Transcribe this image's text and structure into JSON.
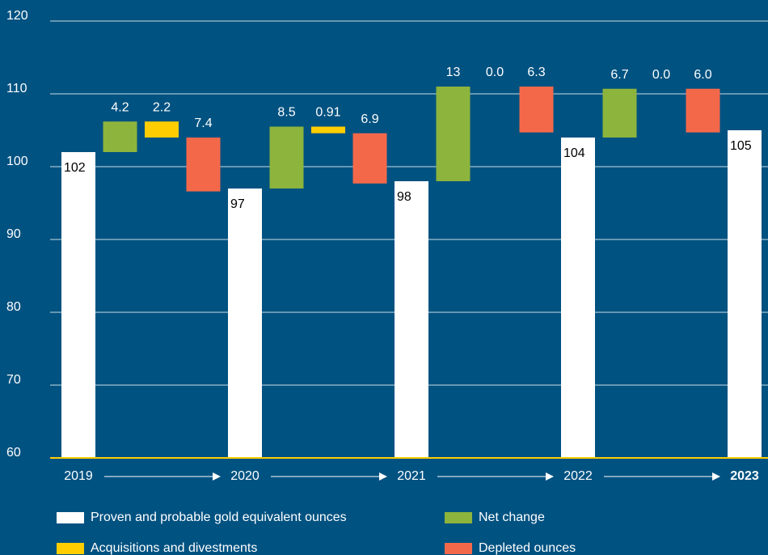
{
  "chart_data": {
    "type": "waterfall",
    "categories": [
      "2019",
      null,
      null,
      null,
      "2020",
      null,
      null,
      null,
      "2021",
      null,
      null,
      null,
      "2022",
      null,
      null,
      null,
      "2023"
    ],
    "series": [
      {
        "name": "Proven and probable gold equivalent ounces",
        "color": "#ffffff",
        "values": [
          102,
          null,
          null,
          null,
          97,
          null,
          null,
          null,
          98,
          null,
          null,
          null,
          104,
          null,
          null,
          null,
          105
        ]
      },
      {
        "name": "Net change",
        "color": "#8db43c",
        "values": [
          null,
          4.2,
          null,
          null,
          null,
          8.5,
          null,
          null,
          null,
          13,
          null,
          null,
          null,
          6.7,
          null,
          null,
          null
        ]
      },
      {
        "name": "Acquisitions and divestments",
        "color": "#ffcd00",
        "values": [
          null,
          null,
          -2.2,
          null,
          null,
          null,
          -0.91,
          null,
          null,
          null,
          0,
          null,
          null,
          null,
          0,
          null,
          null
        ],
        "value_labels": [
          null,
          null,
          "2.2",
          null,
          null,
          null,
          "0.91",
          null,
          null,
          null,
          "0.0",
          null,
          null,
          null,
          "0.0",
          null,
          null
        ]
      },
      {
        "name": "Depleted ounces",
        "color": "#f4684a",
        "values": [
          null,
          null,
          null,
          -7.4,
          null,
          null,
          null,
          -6.9,
          null,
          null,
          null,
          -6.3,
          null,
          null,
          null,
          -6.0,
          null
        ],
        "value_labels": [
          null,
          null,
          null,
          "7.4",
          null,
          null,
          null,
          "6.9",
          null,
          null,
          null,
          "6.3",
          null,
          null,
          null,
          "6.0",
          null
        ]
      }
    ],
    "ylim": [
      60,
      120
    ],
    "yticks": [
      60,
      70,
      80,
      90,
      100,
      110,
      120
    ],
    "grid": true,
    "axis_color": "#ffcd00"
  }
}
